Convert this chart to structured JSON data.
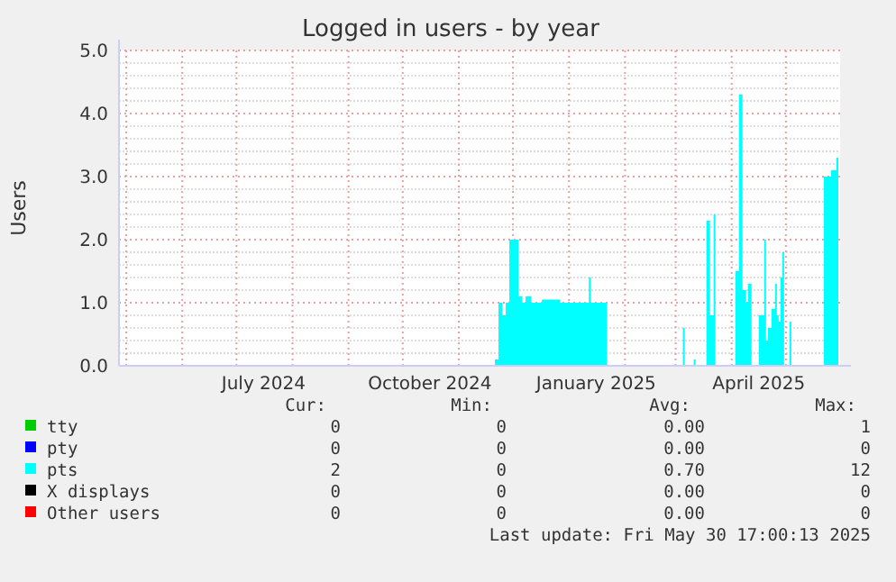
{
  "chart_data": {
    "type": "area",
    "title": "Logged in users - by year",
    "ylabel": "Users",
    "xlim": [
      "2024-04-27",
      "2025-05-31"
    ],
    "xticks": [
      {
        "value": "2024-05-01",
        "label": null
      },
      {
        "value": "2024-06-01",
        "label": null
      },
      {
        "value": "2024-07-01",
        "label": null
      },
      {
        "value": "2024-07-16",
        "label": "July 2024"
      },
      {
        "value": "2024-08-01",
        "label": null
      },
      {
        "value": "2024-09-01",
        "label": null
      },
      {
        "value": "2024-10-01",
        "label": null
      },
      {
        "value": "2024-10-16",
        "label": "October 2024"
      },
      {
        "value": "2024-11-01",
        "label": null
      },
      {
        "value": "2024-12-01",
        "label": null
      },
      {
        "value": "2025-01-01",
        "label": null
      },
      {
        "value": "2025-01-16",
        "label": "January 2025"
      },
      {
        "value": "2025-02-01",
        "label": null
      },
      {
        "value": "2025-03-01",
        "label": null
      },
      {
        "value": "2025-04-01",
        "label": null
      },
      {
        "value": "2025-04-16",
        "label": "April 2025"
      },
      {
        "value": "2025-05-01",
        "label": null
      }
    ],
    "ylim": [
      0,
      5
    ],
    "yticks": [
      {
        "value": 0,
        "label": "0.0"
      },
      {
        "value": 1,
        "label": "1.0"
      },
      {
        "value": 2,
        "label": "2.0"
      },
      {
        "value": 3,
        "label": "3.0"
      },
      {
        "value": 4,
        "label": "4.0"
      },
      {
        "value": 5,
        "label": "5.0"
      }
    ],
    "grid": true,
    "legend": "bottom",
    "series": [
      {
        "name": "tty",
        "color": "#00cc00"
      },
      {
        "name": "pty",
        "color": "#0000ff"
      },
      {
        "name": "pts",
        "color": "#00ffff",
        "x": [
          "2024-11-20",
          "2024-11-21",
          "2024-11-23",
          "2024-11-25",
          "2024-11-27",
          "2024-11-29",
          "2024-12-02",
          "2024-12-04",
          "2024-12-06",
          "2024-12-08",
          "2024-12-11",
          "2024-12-17",
          "2024-12-27",
          "2025-01-10",
          "2025-01-12",
          "2025-01-13",
          "2025-01-21",
          "2025-01-22",
          "2025-03-04",
          "2025-03-05",
          "2025-03-06",
          "2025-03-10",
          "2025-03-11",
          "2025-03-12",
          "2025-03-17",
          "2025-03-18",
          "2025-03-20",
          "2025-03-22",
          "2025-03-23",
          "2025-04-01",
          "2025-04-03",
          "2025-04-05",
          "2025-04-07",
          "2025-04-09",
          "2025-04-10",
          "2025-04-12",
          "2025-04-15",
          "2025-04-16",
          "2025-04-19",
          "2025-04-20",
          "2025-04-21",
          "2025-04-23",
          "2025-04-25",
          "2025-04-26",
          "2025-04-27",
          "2025-04-28",
          "2025-04-29",
          "2025-04-30",
          "2025-05-02",
          "2025-05-03",
          "2025-05-04",
          "2025-05-21",
          "2025-05-22",
          "2025-05-26",
          "2025-05-29",
          "2025-05-30"
        ],
        "values": [
          0,
          0.1,
          1.0,
          0.8,
          1.0,
          2.0,
          2.0,
          1.1,
          1.0,
          1.1,
          1.0,
          1.05,
          1.0,
          1.0,
          1.4,
          1.0,
          1.0,
          0,
          0,
          0.6,
          0,
          0,
          0.1,
          0,
          0,
          2.3,
          0.8,
          2.4,
          0,
          0,
          1.5,
          4.3,
          1.2,
          1.0,
          1.3,
          0,
          0,
          0.8,
          2.0,
          0.4,
          0.6,
          0.9,
          1.3,
          0.8,
          0.7,
          1.4,
          1.8,
          0,
          0,
          0.7,
          0,
          0,
          3.0,
          3.1,
          3.3,
          3.3
        ]
      },
      {
        "name": "X displays",
        "color": "#000000"
      },
      {
        "name": "Other users",
        "color": "#ff0000"
      }
    ],
    "annotations": [
      "Cur:",
      "Min:",
      "Avg:",
      "Max:",
      "0",
      "0",
      "0.00",
      "1",
      "0",
      "0",
      "0.00",
      "0",
      "2",
      "0",
      "0.70",
      "12",
      "0",
      "0",
      "0.00",
      "0",
      "0",
      "0",
      "0.00",
      "0",
      "Last update: Fri May 30 17:00:13 2025"
    ]
  }
}
